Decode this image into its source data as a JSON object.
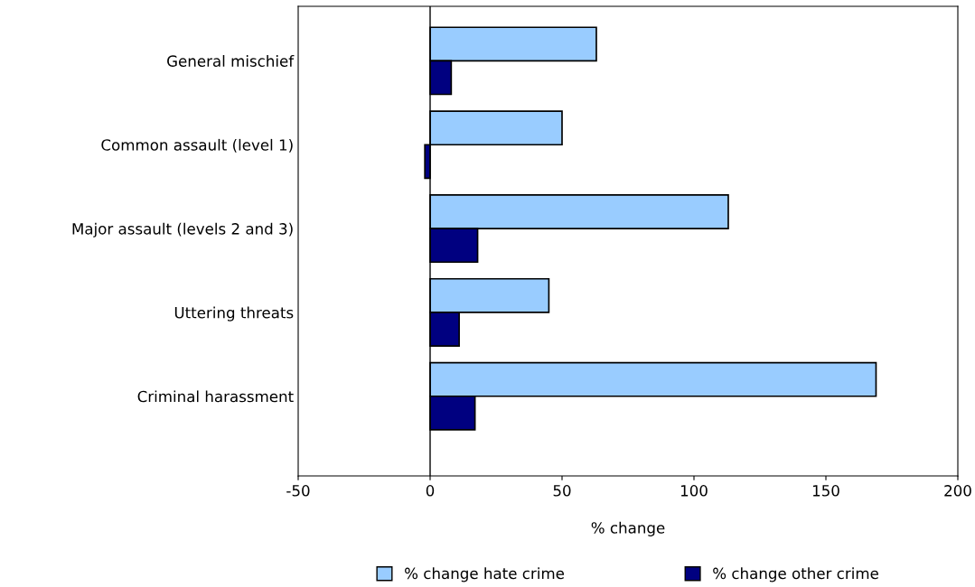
{
  "chart_data": {
    "type": "bar",
    "orientation": "horizontal",
    "xlabel": "% change",
    "categories": [
      "General mischief",
      "Common assault (level 1)",
      "Major assault (levels 2 and 3)",
      "Uttering threats",
      "Criminal harassment"
    ],
    "series": [
      {
        "name": "% change hate crime",
        "color": "#99ccff",
        "values": [
          63,
          50,
          113,
          45,
          169
        ]
      },
      {
        "name": "% change other crime",
        "color": "#000080",
        "values": [
          8,
          -2,
          18,
          11,
          17
        ]
      }
    ],
    "xlim": [
      -50,
      200
    ],
    "xticks": [
      -50,
      0,
      50,
      100,
      150,
      200
    ],
    "ref_lines": [
      {
        "axis": "x",
        "value": 0,
        "color": "#000000"
      }
    ],
    "legend": "bottom"
  }
}
